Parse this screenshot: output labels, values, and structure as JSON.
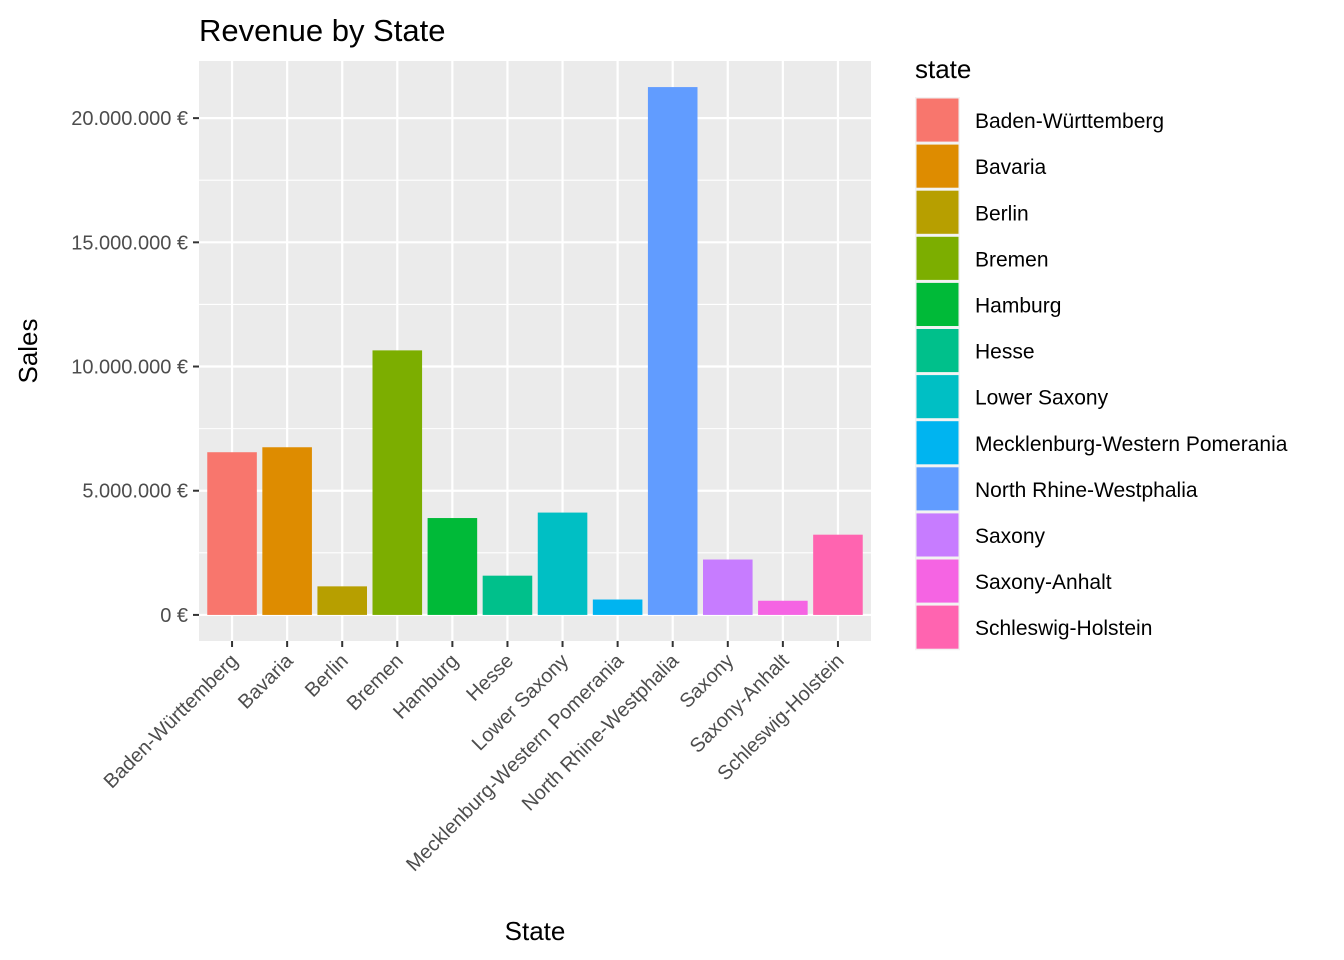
{
  "chart_data": {
    "type": "bar",
    "title": "Revenue by State",
    "xlabel": "State",
    "ylabel": "Sales",
    "categories": [
      "Baden-Württemberg",
      "Bavaria",
      "Berlin",
      "Bremen",
      "Hamburg",
      "Hesse",
      "Lower Saxony",
      "Mecklenburg-Western Pomerania",
      "North Rhine-Westphalia",
      "Saxony",
      "Saxony-Anhalt",
      "Schleswig-Holstein"
    ],
    "values": [
      6550000,
      6750000,
      1150000,
      10650000,
      3900000,
      1580000,
      4120000,
      620000,
      21250000,
      2230000,
      570000,
      3230000
    ],
    "colors": [
      "#F8766D",
      "#DE8C00",
      "#B79F00",
      "#7CAE00",
      "#00BA38",
      "#00C08B",
      "#00BFC4",
      "#00B4F0",
      "#619CFF",
      "#C77CFF",
      "#F564E3",
      "#FF64B0"
    ],
    "ylim": [
      -1050000,
      22300000
    ],
    "y_ticks": [
      0,
      5000000,
      10000000,
      15000000,
      20000000
    ],
    "y_tick_labels": [
      "0 €",
      "5.000.000 €",
      "10.000.000 €",
      "15.000.000 €",
      "20.000.000 €"
    ],
    "grid": true,
    "panel_background": "#EBEBEB",
    "legend": {
      "title": "state",
      "placement": "right"
    }
  }
}
